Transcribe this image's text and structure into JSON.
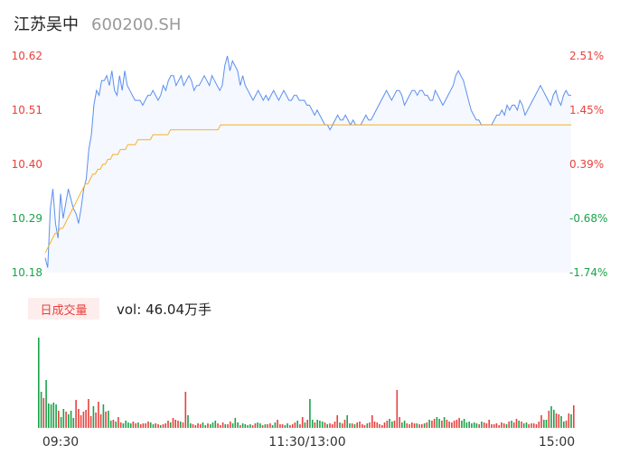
{
  "header": {
    "name": "江苏吴中",
    "code": "600200.SH"
  },
  "volume_header": {
    "tag": "日成交量",
    "prefix": "vol:",
    "value": "46.04万手"
  },
  "colors": {
    "price": "#5b8ff0",
    "avg": "#f5b12f",
    "up": "#e8413d",
    "down": "#1aa34a",
    "neutral": "#999999",
    "fill": "#f5f8fe"
  },
  "chart_data": [
    {
      "type": "line",
      "x_ticks": [
        "09:30",
        "11:30/13:00",
        "15:00"
      ],
      "y_left_ticks": [
        "10.62",
        "10.51",
        "10.40",
        "10.29",
        "10.18"
      ],
      "y_right_ticks": [
        "2.51%",
        "1.45%",
        "0.39%",
        "-0.68%",
        "-1.74%"
      ],
      "ylim": [
        10.18,
        10.62
      ],
      "prev_close": 10.36,
      "series": [
        {
          "role": "price",
          "values": [
            10.21,
            10.19,
            10.31,
            10.35,
            10.28,
            10.25,
            10.34,
            10.29,
            10.32,
            10.35,
            10.33,
            10.31,
            10.3,
            10.28,
            10.31,
            10.35,
            10.37,
            10.43,
            10.46,
            10.52,
            10.55,
            10.54,
            10.57,
            10.57,
            10.58,
            10.56,
            10.59,
            10.55,
            10.54,
            10.58,
            10.55,
            10.59,
            10.56,
            10.55,
            10.54,
            10.53,
            10.53,
            10.53,
            10.52,
            10.53,
            10.54,
            10.54,
            10.55,
            10.54,
            10.53,
            10.54,
            10.56,
            10.55,
            10.57,
            10.58,
            10.58,
            10.56,
            10.57,
            10.58,
            10.56,
            10.57,
            10.58,
            10.57,
            10.55,
            10.56,
            10.56,
            10.57,
            10.58,
            10.57,
            10.56,
            10.58,
            10.57,
            10.56,
            10.55,
            10.56,
            10.6,
            10.62,
            10.59,
            10.61,
            10.6,
            10.59,
            10.56,
            10.58,
            10.56,
            10.55,
            10.54,
            10.53,
            10.54,
            10.55,
            10.54,
            10.53,
            10.54,
            10.53,
            10.54,
            10.55,
            10.54,
            10.53,
            10.54,
            10.55,
            10.54,
            10.53,
            10.53,
            10.54,
            10.54,
            10.53,
            10.53,
            10.53,
            10.52,
            10.52,
            10.51,
            10.5,
            10.51,
            10.5,
            10.49,
            10.48,
            10.48,
            10.47,
            10.48,
            10.49,
            10.5,
            10.49,
            10.49,
            10.5,
            10.49,
            10.48,
            10.49,
            10.48,
            10.48,
            10.48,
            10.49,
            10.5,
            10.49,
            10.49,
            10.5,
            10.51,
            10.52,
            10.53,
            10.54,
            10.55,
            10.54,
            10.53,
            10.54,
            10.55,
            10.55,
            10.54,
            10.52,
            10.53,
            10.54,
            10.55,
            10.55,
            10.54,
            10.55,
            10.55,
            10.54,
            10.54,
            10.53,
            10.53,
            10.55,
            10.54,
            10.53,
            10.52,
            10.53,
            10.54,
            10.55,
            10.56,
            10.58,
            10.59,
            10.58,
            10.57,
            10.55,
            10.53,
            10.51,
            10.5,
            10.49,
            10.49,
            10.48,
            10.48,
            10.48,
            10.48,
            10.48,
            10.49,
            10.5,
            10.5,
            10.51,
            10.5,
            10.52,
            10.51,
            10.52,
            10.52,
            10.51,
            10.53,
            10.52,
            10.5,
            10.51,
            10.52,
            10.53,
            10.54,
            10.55,
            10.56,
            10.55,
            10.54,
            10.53,
            10.52,
            10.54,
            10.55,
            10.53,
            10.52,
            10.54,
            10.55,
            10.54,
            10.54
          ]
        },
        {
          "role": "average",
          "values": [
            10.22,
            10.23,
            10.24,
            10.25,
            10.26,
            10.26,
            10.27,
            10.27,
            10.28,
            10.29,
            10.3,
            10.31,
            10.32,
            10.33,
            10.34,
            10.35,
            10.36,
            10.36,
            10.37,
            10.38,
            10.38,
            10.39,
            10.39,
            10.4,
            10.4,
            10.41,
            10.41,
            10.42,
            10.42,
            10.42,
            10.43,
            10.43,
            10.43,
            10.44,
            10.44,
            10.44,
            10.44,
            10.45,
            10.45,
            10.45,
            10.45,
            10.45,
            10.45,
            10.46,
            10.46,
            10.46,
            10.46,
            10.46,
            10.46,
            10.46,
            10.47,
            10.47,
            10.47,
            10.47,
            10.47,
            10.47,
            10.47,
            10.47,
            10.47,
            10.47,
            10.47,
            10.47,
            10.47,
            10.47,
            10.47,
            10.47,
            10.47,
            10.47,
            10.47,
            10.47,
            10.48,
            10.48,
            10.48,
            10.48,
            10.48,
            10.48,
            10.48,
            10.48,
            10.48,
            10.48,
            10.48,
            10.48,
            10.48,
            10.48,
            10.48,
            10.48,
            10.48,
            10.48,
            10.48,
            10.48,
            10.48,
            10.48,
            10.48,
            10.48,
            10.48,
            10.48,
            10.48,
            10.48,
            10.48,
            10.48,
            10.48,
            10.48,
            10.48,
            10.48,
            10.48,
            10.48,
            10.48,
            10.48,
            10.48,
            10.48,
            10.48,
            10.48,
            10.48,
            10.48,
            10.48,
            10.48,
            10.48,
            10.48,
            10.48,
            10.48,
            10.48,
            10.48,
            10.48,
            10.48,
            10.48,
            10.48,
            10.48,
            10.48,
            10.48,
            10.48,
            10.48,
            10.48,
            10.48,
            10.48,
            10.48,
            10.48,
            10.48,
            10.48,
            10.48,
            10.48,
            10.48,
            10.48,
            10.48,
            10.48,
            10.48,
            10.48,
            10.48,
            10.48,
            10.48,
            10.48,
            10.48,
            10.48,
            10.48,
            10.48,
            10.48,
            10.48,
            10.48,
            10.48,
            10.48,
            10.48,
            10.48,
            10.48,
            10.48,
            10.48,
            10.48,
            10.48,
            10.48,
            10.48,
            10.48,
            10.48,
            10.48,
            10.48,
            10.48,
            10.48,
            10.48,
            10.48,
            10.48,
            10.48,
            10.48,
            10.48,
            10.48,
            10.48,
            10.48,
            10.48,
            10.48,
            10.48,
            10.48,
            10.48,
            10.48,
            10.48,
            10.48,
            10.48,
            10.48,
            10.48,
            10.48,
            10.48,
            10.48,
            10.48,
            10.48,
            10.48,
            10.48,
            10.48,
            10.48,
            10.48,
            10.48,
            10.48,
            10.48,
            10.48,
            10.48,
            10.48,
            10.48
          ]
        }
      ]
    },
    {
      "type": "bar",
      "series": [
        {
          "role": "volume",
          "values": [
            100,
            40,
            33,
            53,
            27,
            26,
            28,
            26,
            19,
            12,
            21,
            18,
            15,
            19,
            11,
            31,
            21,
            14,
            18,
            20,
            32,
            13,
            24,
            17,
            29,
            15,
            26,
            18,
            19,
            8,
            9,
            7,
            12,
            6,
            5,
            8,
            6,
            5,
            7,
            5,
            6,
            4,
            5,
            5,
            7,
            6,
            4,
            5,
            4,
            3,
            4,
            5,
            8,
            6,
            11,
            9,
            8,
            7,
            6,
            40,
            14,
            5,
            4,
            3,
            5,
            4,
            6,
            3,
            5,
            4,
            6,
            8,
            5,
            3,
            6,
            4,
            4,
            7,
            5,
            11,
            6,
            3,
            5,
            4,
            3,
            4,
            3,
            5,
            6,
            5,
            3,
            4,
            4,
            5,
            3,
            6,
            9,
            4,
            4,
            3,
            5,
            3,
            4,
            6,
            8,
            4,
            12,
            6,
            9,
            32,
            9,
            6,
            9,
            8,
            7,
            6,
            4,
            5,
            4,
            7,
            14,
            6,
            5,
            9,
            14,
            5,
            5,
            4,
            6,
            7,
            4,
            3,
            5,
            6,
            14,
            7,
            6,
            4,
            3,
            6,
            8,
            10,
            7,
            8,
            42,
            12,
            6,
            8,
            5,
            4,
            6,
            5,
            5,
            4,
            4,
            5,
            6,
            9,
            8,
            10,
            12,
            10,
            8,
            12,
            9,
            7,
            6,
            8,
            9,
            11,
            8,
            10,
            6,
            7,
            5,
            6,
            5,
            4,
            7,
            6,
            5,
            9,
            4,
            4,
            5,
            3,
            6,
            5,
            4,
            7,
            8,
            6,
            10,
            8,
            7,
            5,
            6,
            4,
            5,
            5,
            4,
            7,
            14,
            9,
            9,
            19,
            24,
            20,
            16,
            15,
            13,
            7,
            8,
            16,
            15,
            25
          ]
        }
      ]
    }
  ]
}
